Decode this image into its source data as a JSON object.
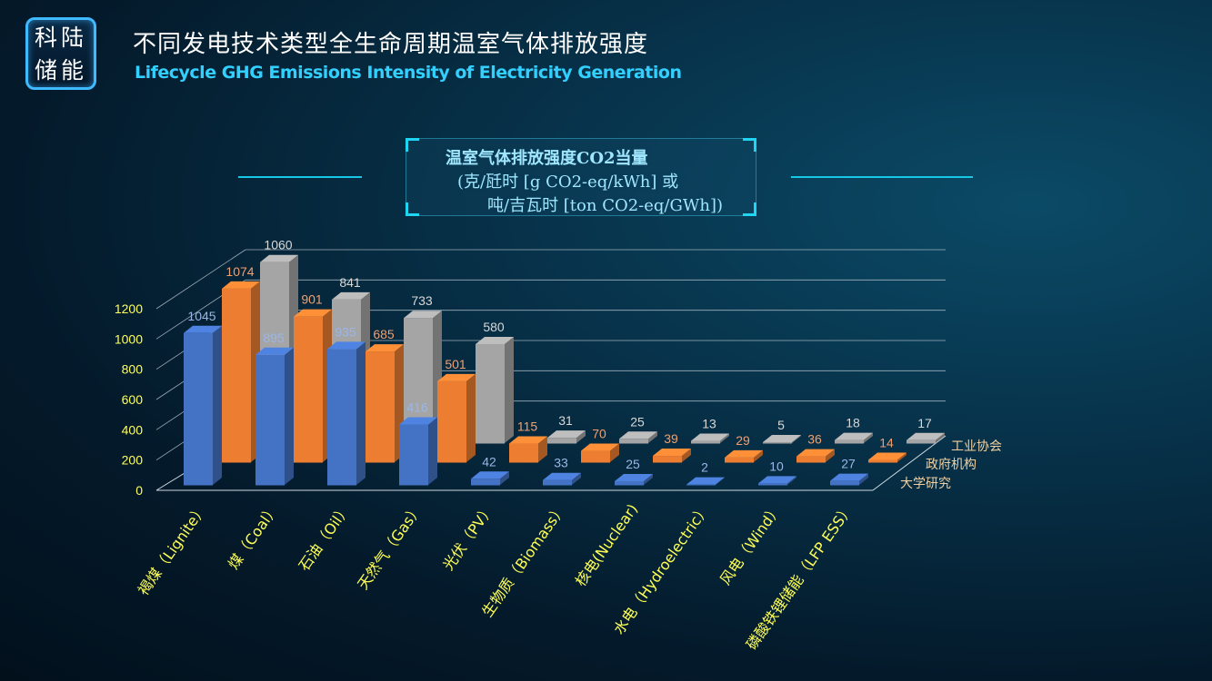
{
  "header": {
    "logo_line1": "科陆",
    "logo_line2": "储能",
    "title_cn": "不同发电技术类型全生命周期温室气体排放强度",
    "title_en": "Lifecycle GHG Emissions Intensity of Electricity Generation"
  },
  "subtitle": {
    "line1": "温室气体排放强度CO2当量",
    "line2": "(克/瓩时 [g CO2-eq/kWh] 或",
    "line3": "吨/吉瓦时 [ton CO2-eq/GWh])"
  },
  "colors": {
    "series_blue": "#4472c4",
    "series_orange": "#ed7d31",
    "series_gray": "#a5a5a5",
    "axis_label": "#ffff55"
  },
  "chart_data": {
    "type": "bar",
    "categories": [
      "褐煤（Lignite）",
      "煤（Coal）",
      "石油（Oil）",
      "天然气（Gas）",
      "光伏（PV）",
      "生物质（Biomass）",
      "核电(Nuclear)",
      "水电（Hydroelectric）",
      "风电（Wind）",
      "磷酸铁锂储能（LFP ESS）"
    ],
    "series": [
      {
        "name": "大学研究",
        "values": [
          1045,
          895,
          935,
          416,
          42,
          33,
          25,
          2,
          10,
          27
        ]
      },
      {
        "name": "政府机构",
        "values": [
          1074,
          901,
          685,
          501,
          115,
          70,
          39,
          29,
          36,
          14
        ]
      },
      {
        "name": "工业协会",
        "values": [
          1060,
          841,
          733,
          580,
          31,
          25,
          13,
          5,
          18,
          17
        ]
      }
    ],
    "yticks": [
      0,
      200,
      400,
      600,
      800,
      1000,
      1200
    ],
    "ylim": [
      0,
      1200
    ],
    "legend_placement": "right"
  }
}
